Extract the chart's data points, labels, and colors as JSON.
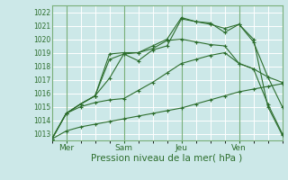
{
  "title": "",
  "xlabel": "Pression niveau de la mer( hPa )",
  "ylabel": "",
  "background_color": "#cce8e8",
  "grid_color": "#ffffff",
  "line_color": "#2d6e2d",
  "spine_color": "#7ab07a",
  "ylim": [
    1012.5,
    1022.5
  ],
  "xlim": [
    0,
    16
  ],
  "yticks": [
    1013,
    1014,
    1015,
    1016,
    1017,
    1018,
    1019,
    1020,
    1021,
    1022
  ],
  "xtick_positions": [
    1,
    5,
    9,
    13
  ],
  "xtick_labels": [
    "Mer",
    "Sam",
    "Jeu",
    "Ven"
  ],
  "vline_positions": [
    1,
    5,
    9,
    13
  ],
  "xlabel_fontsize": 7.5,
  "ytick_fontsize": 5.5,
  "xtick_fontsize": 6.5,
  "series": [
    {
      "x": [
        0,
        1,
        2,
        3,
        4,
        5,
        6,
        7,
        8,
        9,
        10,
        11,
        12,
        13,
        14,
        15,
        16
      ],
      "y": [
        1012.6,
        1013.2,
        1013.5,
        1013.7,
        1013.9,
        1014.1,
        1014.3,
        1014.5,
        1014.7,
        1014.9,
        1015.2,
        1015.5,
        1015.8,
        1016.1,
        1016.3,
        1016.5,
        1016.7
      ]
    },
    {
      "x": [
        0,
        1,
        2,
        3,
        4,
        5,
        6,
        7,
        8,
        9,
        10,
        11,
        12,
        13,
        14,
        15,
        16
      ],
      "y": [
        1012.6,
        1014.5,
        1015.0,
        1015.3,
        1015.5,
        1015.6,
        1016.2,
        1016.8,
        1017.5,
        1018.2,
        1018.5,
        1018.8,
        1019.0,
        1018.2,
        1017.8,
        1017.2,
        1016.8
      ]
    },
    {
      "x": [
        0,
        1,
        2,
        3,
        4,
        5,
        6,
        7,
        8,
        9,
        10,
        11,
        12,
        13,
        14,
        15,
        16
      ],
      "y": [
        1012.6,
        1014.5,
        1015.2,
        1015.8,
        1017.1,
        1018.9,
        1019.0,
        1019.3,
        1019.9,
        1020.0,
        1019.8,
        1019.6,
        1019.5,
        1018.2,
        1017.8,
        1015.2,
        1013.0
      ]
    },
    {
      "x": [
        0,
        1,
        2,
        3,
        4,
        5,
        6,
        7,
        8,
        9,
        10,
        11,
        12,
        13,
        14,
        15,
        16
      ],
      "y": [
        1012.6,
        1014.5,
        1015.2,
        1015.8,
        1018.9,
        1019.0,
        1019.0,
        1019.5,
        1020.0,
        1021.6,
        1021.3,
        1021.1,
        1020.8,
        1021.1,
        1019.8,
        1017.2,
        1015.0
      ]
    },
    {
      "x": [
        0,
        1,
        2,
        3,
        4,
        5,
        6,
        7,
        8,
        9,
        10,
        11,
        12,
        13,
        14,
        15,
        16
      ],
      "y": [
        1012.6,
        1014.5,
        1015.2,
        1015.8,
        1018.5,
        1018.9,
        1018.4,
        1019.2,
        1019.5,
        1021.5,
        1021.3,
        1021.2,
        1020.5,
        1021.1,
        1020.0,
        1015.0,
        1012.9
      ]
    }
  ]
}
